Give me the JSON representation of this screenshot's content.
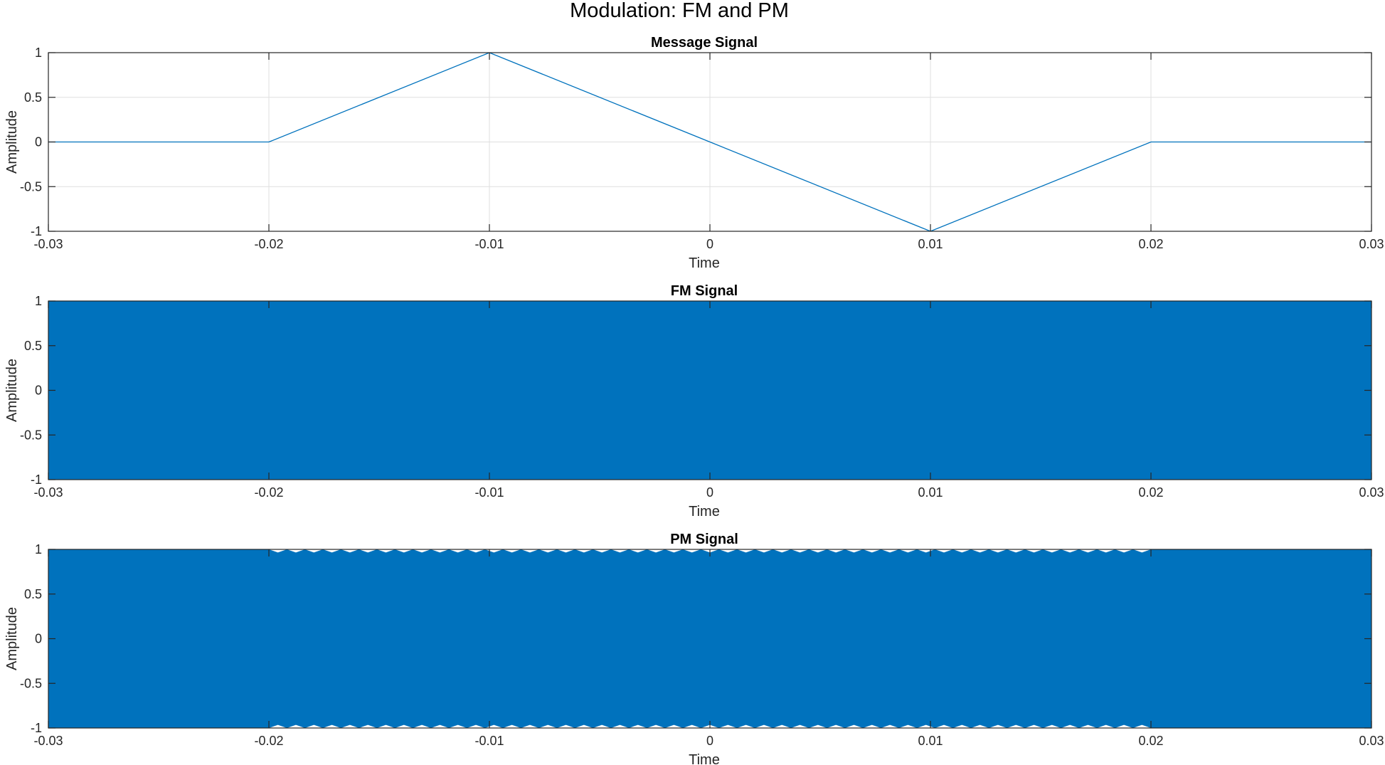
{
  "figure": {
    "title": "Modulation: FM and PM"
  },
  "colors": {
    "series": "#0072bd",
    "grid": "#dfdfdf",
    "axis": "#262626"
  },
  "chart_data": [
    {
      "type": "line",
      "title": "Message Signal",
      "xlabel": "Time",
      "ylabel": "Amplitude",
      "xlim": [
        -0.03,
        0.03
      ],
      "ylim": [
        -1,
        1
      ],
      "xticks": [
        -0.03,
        -0.02,
        -0.01,
        0,
        0.01,
        0.02,
        0.03
      ],
      "xtick_labels": [
        "-0.03",
        "-0.02",
        "-0.01",
        "0",
        "0.01",
        "0.02",
        "0.03"
      ],
      "yticks": [
        -1,
        -0.5,
        0,
        0.5,
        1
      ],
      "ytick_labels": [
        "-1",
        "-0.5",
        "0",
        "0.5",
        "1"
      ],
      "grid": true,
      "series": [
        {
          "x": [
            -0.03,
            -0.02,
            -0.01,
            0,
            0.01,
            0.02,
            0.03
          ],
          "y": [
            0,
            0,
            1,
            0,
            -1,
            0,
            0
          ]
        }
      ]
    },
    {
      "type": "line",
      "title": "FM Signal",
      "xlabel": "Time",
      "ylabel": "Amplitude",
      "xlim": [
        -0.03,
        0.03
      ],
      "ylim": [
        -1,
        1
      ],
      "xticks": [
        -0.03,
        -0.02,
        -0.01,
        0,
        0.01,
        0.02,
        0.03
      ],
      "xtick_labels": [
        "-0.03",
        "-0.02",
        "-0.01",
        "0",
        "0.01",
        "0.02",
        "0.03"
      ],
      "yticks": [
        -1,
        -0.5,
        0,
        0.5,
        1
      ],
      "ytick_labels": [
        "-1",
        "-0.5",
        "0",
        "0.5",
        "1"
      ],
      "grid": true,
      "series": [
        {
          "envelope_x": [
            -0.03,
            0.03
          ],
          "envelope_min": -1,
          "envelope_max": 1,
          "dense_oscillation": true
        }
      ]
    },
    {
      "type": "line",
      "title": "PM Signal",
      "xlabel": "Time",
      "ylabel": "Amplitude",
      "xlim": [
        -0.03,
        0.03
      ],
      "ylim": [
        -1,
        1
      ],
      "xticks": [
        -0.03,
        -0.02,
        -0.01,
        0,
        0.01,
        0.02,
        0.03
      ],
      "xtick_labels": [
        "-0.03",
        "-0.02",
        "-0.01",
        "0",
        "0.01",
        "0.02",
        "0.03"
      ],
      "yticks": [
        -1,
        -0.5,
        0,
        0.5,
        1
      ],
      "ytick_labels": [
        "-1",
        "-0.5",
        "0",
        "0.5",
        "1"
      ],
      "grid": true,
      "series": [
        {
          "envelope_x": [
            -0.03,
            0.03
          ],
          "envelope_min": -1,
          "envelope_max": 1,
          "dense_oscillation": true,
          "edge_ripple_range": [
            -0.02,
            0.02
          ],
          "edge_ripple_count": 49,
          "edge_ripple_depth": 0.035
        }
      ]
    }
  ]
}
